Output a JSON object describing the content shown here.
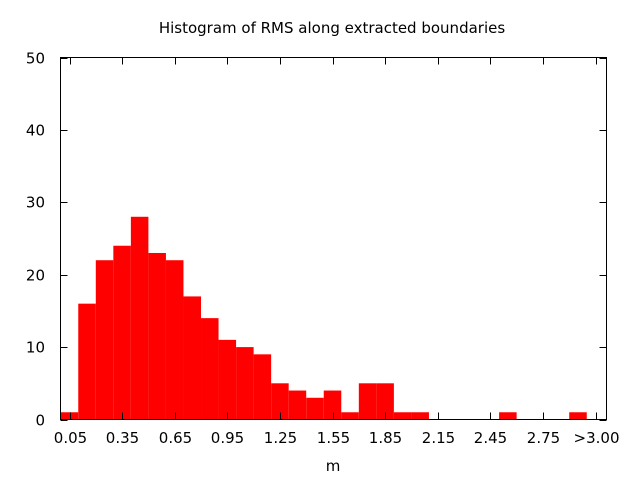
{
  "chart_data": {
    "type": "bar",
    "title": "Histogram of RMS along extracted boundaries",
    "xlabel": "m",
    "ylabel": "",
    "ylim": [
      0,
      50
    ],
    "yticks": [
      "0",
      "10",
      "20",
      "30",
      "40",
      "50"
    ],
    "xticks": [
      "0.05",
      "0.35",
      "0.65",
      "0.95",
      "1.25",
      "1.55",
      "1.85",
      "2.15",
      "2.45",
      "2.75",
      ">3.00"
    ],
    "bin_width": 0.1,
    "bins": [
      {
        "x": 0.05,
        "value": 1
      },
      {
        "x": 0.15,
        "value": 16
      },
      {
        "x": 0.25,
        "value": 22
      },
      {
        "x": 0.35,
        "value": 24
      },
      {
        "x": 0.45,
        "value": 28
      },
      {
        "x": 0.55,
        "value": 23
      },
      {
        "x": 0.65,
        "value": 22
      },
      {
        "x": 0.75,
        "value": 17
      },
      {
        "x": 0.85,
        "value": 14
      },
      {
        "x": 0.95,
        "value": 11
      },
      {
        "x": 1.05,
        "value": 10
      },
      {
        "x": 1.15,
        "value": 9
      },
      {
        "x": 1.25,
        "value": 5
      },
      {
        "x": 1.35,
        "value": 4
      },
      {
        "x": 1.45,
        "value": 3
      },
      {
        "x": 1.55,
        "value": 4
      },
      {
        "x": 1.65,
        "value": 1
      },
      {
        "x": 1.75,
        "value": 5
      },
      {
        "x": 1.85,
        "value": 5
      },
      {
        "x": 1.95,
        "value": 1
      },
      {
        "x": 2.05,
        "value": 1
      },
      {
        "x": 2.15,
        "value": 0
      },
      {
        "x": 2.25,
        "value": 0
      },
      {
        "x": 2.35,
        "value": 0
      },
      {
        "x": 2.45,
        "value": 0
      },
      {
        "x": 2.55,
        "value": 1
      },
      {
        "x": 2.65,
        "value": 0
      },
      {
        "x": 2.75,
        "value": 0
      },
      {
        "x": 2.85,
        "value": 0
      },
      {
        "x": 2.95,
        "value": 1
      }
    ],
    "bar_color": "#ff0000",
    "grid": false
  }
}
